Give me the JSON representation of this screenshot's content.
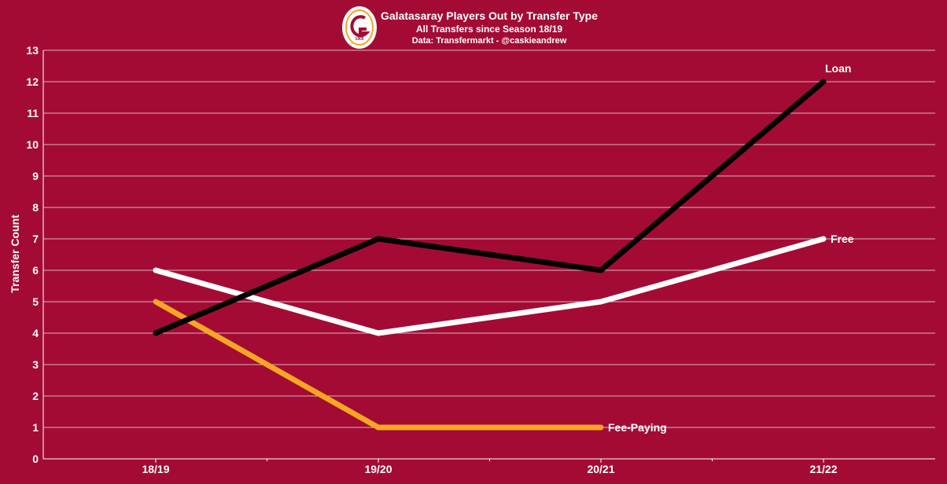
{
  "header": {
    "title": "Galatasaray Players Out by Transfer Type",
    "subtitle": "All Transfers since Season 18/19",
    "source": "Data: Transfermarkt - @caskieandrew",
    "logo_year": "1905"
  },
  "colors": {
    "background": "#a30b35",
    "grid": "#d9b3bd",
    "axis": "#ffffff",
    "logo_red": "#a30b35",
    "logo_gold": "#f5a623"
  },
  "chart_data": {
    "type": "line",
    "title": "Galatasaray Players Out by Transfer Type",
    "subtitle": "All Transfers since Season 18/19",
    "xlabel": "",
    "ylabel": "Transfer Count",
    "categories": [
      "18/19",
      "19/20",
      "20/21",
      "21/22"
    ],
    "ylim": [
      0,
      13
    ],
    "yticks": [
      0,
      1,
      2,
      3,
      4,
      5,
      6,
      7,
      8,
      9,
      10,
      11,
      12,
      13
    ],
    "grid": true,
    "legend": "end-of-line labels",
    "series": [
      {
        "name": "Loan",
        "color": "#000000",
        "values": [
          4,
          7,
          6,
          12
        ]
      },
      {
        "name": "Free",
        "color": "#ffffff",
        "values": [
          6,
          4,
          5,
          7
        ]
      },
      {
        "name": "Fee-Paying",
        "color": "#f5a623",
        "values": [
          5,
          1,
          1,
          null
        ]
      }
    ]
  }
}
